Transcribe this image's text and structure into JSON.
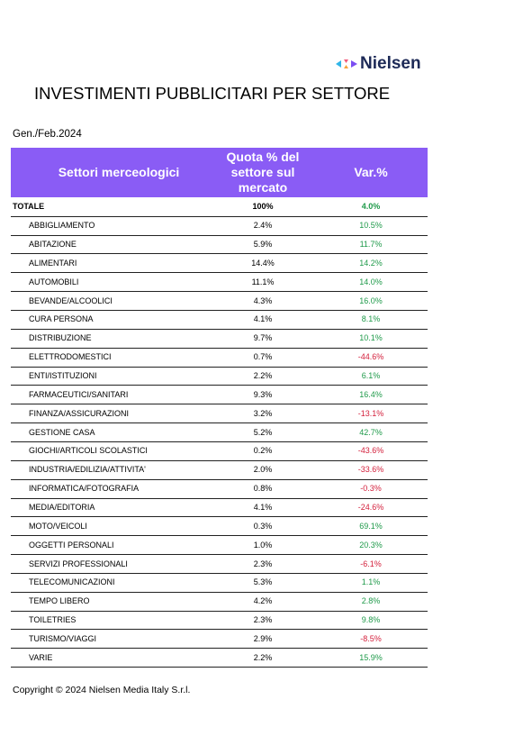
{
  "logo": "Nielsen",
  "title": "INVESTIMENTI PUBBLICITARI PER SETTORE",
  "period": "Gen./Feb.2024",
  "table": {
    "columns": [
      "Settori merceologici",
      "Quota % del settore sul mercato",
      "Var.%"
    ],
    "rows": [
      [
        "TOTALE",
        "100%",
        "4.0%"
      ],
      [
        "ABBIGLIAMENTO",
        "2.4%",
        "10.5%"
      ],
      [
        "ABITAZIONE",
        "5.9%",
        "11.7%"
      ],
      [
        "ALIMENTARI",
        "14.4%",
        "14.2%"
      ],
      [
        "AUTOMOBILI",
        "11.1%",
        "14.0%"
      ],
      [
        "BEVANDE/ALCOOLICI",
        "4.3%",
        "16.0%"
      ],
      [
        "CURA PERSONA",
        "4.1%",
        "8.1%"
      ],
      [
        "DISTRIBUZIONE",
        "9.7%",
        "10.1%"
      ],
      [
        "ELETTRODOMESTICI",
        "0.7%",
        "-44.6%"
      ],
      [
        "ENTI/ISTITUZIONI",
        "2.2%",
        "6.1%"
      ],
      [
        "FARMACEUTICI/SANITARI",
        "9.3%",
        "16.4%"
      ],
      [
        "FINANZA/ASSICURAZIONI",
        "3.2%",
        "-13.1%"
      ],
      [
        "GESTIONE CASA",
        "5.2%",
        "42.7%"
      ],
      [
        "GIOCHI/ARTICOLI SCOLASTICI",
        "0.2%",
        "-43.6%"
      ],
      [
        "INDUSTRIA/EDILIZIA/ATTIVITA'",
        "2.0%",
        "-33.6%"
      ],
      [
        "INFORMATICA/FOTOGRAFIA",
        "0.8%",
        "-0.3%"
      ],
      [
        "MEDIA/EDITORIA",
        "4.1%",
        "-24.6%"
      ],
      [
        "MOTO/VEICOLI",
        "0.3%",
        "69.1%"
      ],
      [
        "OGGETTI PERSONALI",
        "1.0%",
        "20.3%"
      ],
      [
        "SERVIZI PROFESSIONALI",
        "2.3%",
        "-6.1%"
      ],
      [
        "TELECOMUNICAZIONI",
        "5.3%",
        "1.1%"
      ],
      [
        "TEMPO LIBERO",
        "4.2%",
        "2.8%"
      ],
      [
        "TOILETRIES",
        "2.3%",
        "9.8%"
      ],
      [
        "TURISMO/VIAGGI",
        "2.9%",
        "-8.5%"
      ],
      [
        "VARIE",
        "2.2%",
        "15.9%"
      ]
    ]
  },
  "footer": "Copyright © 2024 Nielsen Media Italy S.r.l."
}
